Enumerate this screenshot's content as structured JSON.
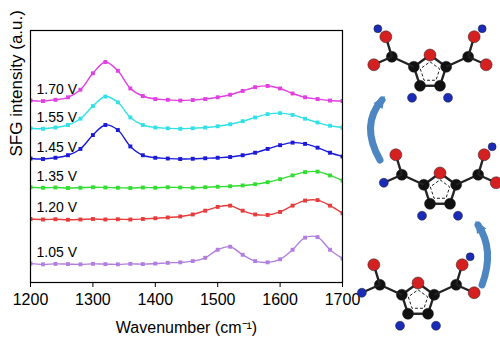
{
  "chart_data": {
    "type": "line",
    "xlabel": "Wavenumber (cm⁻¹)",
    "ylabel": "SFG intensity (a.u.)",
    "x": [
      1200,
      1220,
      1240,
      1260,
      1280,
      1300,
      1320,
      1340,
      1360,
      1380,
      1400,
      1420,
      1440,
      1460,
      1480,
      1500,
      1520,
      1540,
      1560,
      1580,
      1600,
      1620,
      1640,
      1660,
      1680,
      1700
    ],
    "series": [
      {
        "name": "1.05 V",
        "color": "#b07fe0",
        "marker": "square",
        "values": [
          0.75,
          0.72,
          0.74,
          0.73,
          0.72,
          0.74,
          0.73,
          0.72,
          0.74,
          0.73,
          0.75,
          0.78,
          0.8,
          0.85,
          0.98,
          1.3,
          1.42,
          1.1,
          0.85,
          0.8,
          0.92,
          1.3,
          1.78,
          1.8,
          1.3,
          0.95
        ]
      },
      {
        "name": "1.20 V",
        "color": "#e83c3c",
        "marker": "square",
        "values": [
          2.52,
          2.5,
          2.51,
          2.49,
          2.5,
          2.52,
          2.5,
          2.51,
          2.5,
          2.52,
          2.55,
          2.58,
          2.62,
          2.7,
          2.85,
          3.0,
          3.05,
          2.85,
          2.7,
          2.68,
          2.8,
          3.05,
          3.25,
          3.27,
          3.05,
          2.75
        ]
      },
      {
        "name": "1.35 V",
        "color": "#33dd33",
        "marker": "square",
        "values": [
          3.78,
          3.76,
          3.77,
          3.75,
          3.76,
          3.78,
          3.77,
          3.76,
          3.75,
          3.77,
          3.76,
          3.78,
          3.77,
          3.76,
          3.78,
          3.8,
          3.82,
          3.85,
          3.9,
          3.98,
          4.1,
          4.25,
          4.38,
          4.4,
          4.25,
          4.05
        ]
      },
      {
        "name": "1.45 V",
        "color": "#1a1ad8",
        "marker": "square",
        "values": [
          4.92,
          4.9,
          4.95,
          5.05,
          5.3,
          5.85,
          6.25,
          6.05,
          5.4,
          5.05,
          4.95,
          4.92,
          4.9,
          4.91,
          4.93,
          4.95,
          4.98,
          5.05,
          5.15,
          5.3,
          5.45,
          5.55,
          5.5,
          5.35,
          5.15,
          5.0
        ]
      },
      {
        "name": "1.55 V",
        "color": "#33e0e8",
        "marker": "square",
        "values": [
          6.12,
          6.1,
          6.15,
          6.25,
          6.5,
          7.0,
          7.38,
          7.15,
          6.55,
          6.25,
          6.15,
          6.12,
          6.1,
          6.12,
          6.15,
          6.2,
          6.28,
          6.4,
          6.55,
          6.68,
          6.72,
          6.65,
          6.5,
          6.35,
          6.22,
          6.15
        ]
      },
      {
        "name": "1.70 V",
        "color": "#e040e0",
        "marker": "square",
        "values": [
          7.22,
          7.2,
          7.25,
          7.35,
          7.65,
          8.3,
          8.75,
          8.4,
          7.7,
          7.4,
          7.28,
          7.25,
          7.22,
          7.24,
          7.28,
          7.35,
          7.45,
          7.6,
          7.75,
          7.8,
          7.7,
          7.5,
          7.35,
          7.28,
          7.22,
          7.2
        ]
      }
    ],
    "xlim": [
      1200,
      1700
    ],
    "xticks": [
      1200,
      1300,
      1400,
      1500,
      1600,
      1700
    ],
    "ylim": [
      0,
      10
    ],
    "yticks": [],
    "tick_labels": "x"
  }
}
